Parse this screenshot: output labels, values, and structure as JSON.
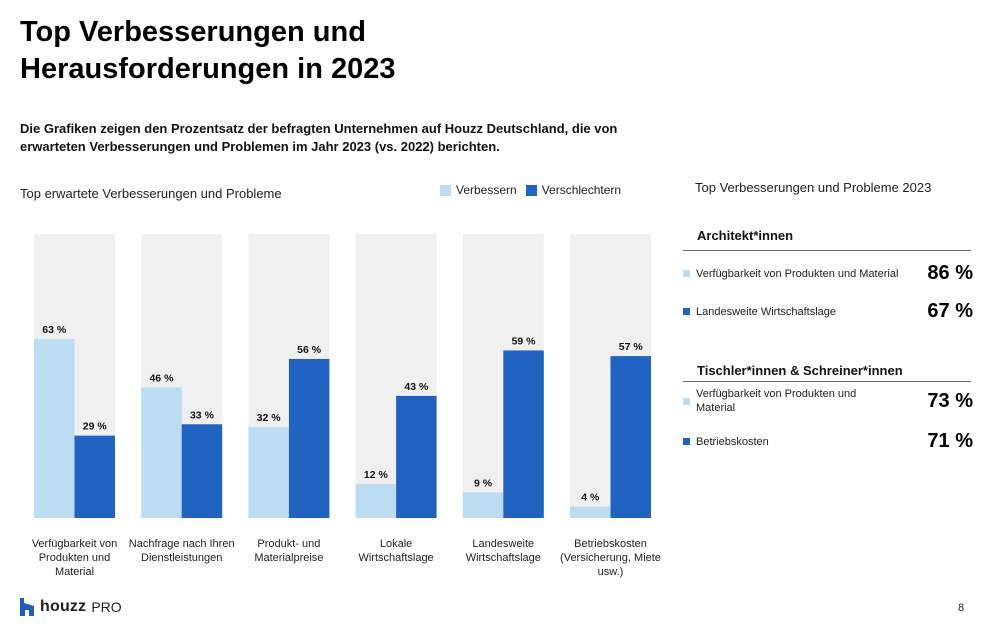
{
  "page": {
    "title": "Top Verbesserungen und Herausforderungen in 2023",
    "subtitle": "Die Grafiken zeigen den Prozentsatz der befragten Unternehmen auf Houzz Deutschland, die von erwarteten Verbesserungen und Problemen im Jahr 2023 (vs. 2022) berichten.",
    "page_number": "8",
    "logo": {
      "brand": "houzz",
      "suffix": "PRO",
      "icon": "houzz-logo-icon"
    }
  },
  "chart_data": {
    "type": "bar",
    "title": "Top erwartete Verbesserungen und Probleme",
    "categories": [
      "Verfügbarkeit von Produkten und Material",
      "Nachfrage nach Ihren Dienstleistungen",
      "Produkt- und Materialpreise",
      "Lokale Wirtschaftslage",
      "Landesweite Wirtschaftslage",
      "Betriebskosten (Versicherung, Miete usw.)"
    ],
    "series": [
      {
        "name": "Verbessern",
        "color": "#bcdcf4",
        "values": [
          63,
          46,
          32,
          12,
          9,
          4
        ]
      },
      {
        "name": "Verschlechtern",
        "color": "#2163c0",
        "values": [
          29,
          33,
          56,
          43,
          59,
          57
        ]
      }
    ],
    "value_suffix": " %",
    "ylim": [
      0,
      100
    ],
    "background_color": "#f0f0f0",
    "legend_position": "top-right",
    "grid": false
  },
  "side_panel": {
    "title": "Top Verbesserungen und Probleme 2023",
    "groups": [
      {
        "title": "Architekt*innen",
        "items": [
          {
            "label": "Verfügbarkeit von Produkten und Material",
            "value": "86 %",
            "color": "#bcdcf4"
          },
          {
            "label": "Landesweite Wirtschaftslage",
            "value": "67 %",
            "color": "#2163c0"
          }
        ]
      },
      {
        "title": "Tischler*innen & Schreiner*innen",
        "items": [
          {
            "label": "Verfügbarkeit von Produkten und Material",
            "value": "73 %",
            "color": "#bcdcf4"
          },
          {
            "label": "Betriebskosten",
            "value": "71 %",
            "color": "#2163c0"
          }
        ]
      }
    ]
  }
}
